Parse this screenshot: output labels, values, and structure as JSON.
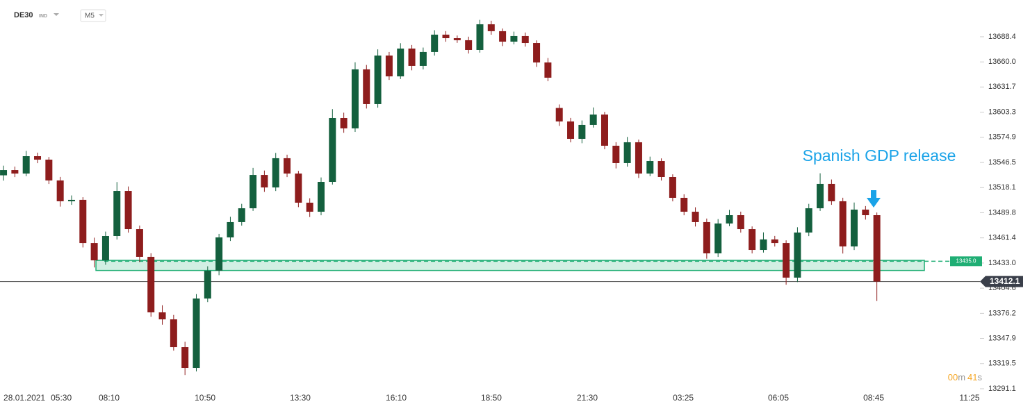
{
  "chart_data": {
    "type": "candlestick",
    "symbol": "DE30",
    "symbol_type": "IND",
    "timeframe": "M5",
    "up_color": "#14603e",
    "down_color": "#8e1d1d",
    "open": [
      13532.0,
      13537.9,
      13534.0,
      13553.6,
      13549.7,
      13526.2,
      13502.7,
      13504.3,
      13455.6,
      13436.0,
      13463.5,
      13514.4,
      13471.3,
      13440.0,
      13377.3,
      13369.4,
      13338.1,
      13314.6,
      13392.9,
      13424.3,
      13461.9,
      13479.2,
      13494.8,
      13532.4,
      13518.3,
      13551.3,
      13534.0,
      13501.1,
      13490.9,
      13524.6,
      13596.7,
      13585.0,
      13651.6,
      13612.4,
      13667.2,
      13643.7,
      13675.1,
      13655.5,
      13671.2,
      13690.8,
      13686.8,
      13684.5,
      13673.5,
      13702.5,
      13694.7,
      13682.9,
      13689.2,
      13681.3,
      13659.4,
      13608.0,
      13592.8,
      13573.2,
      13588.9,
      13600.6,
      13565.4,
      13545.8,
      13569.3,
      13534.0,
      13548.1,
      13530.1,
      13506.6,
      13490.9,
      13479.2,
      13443.9,
      13477.6,
      13487.0,
      13471.3,
      13447.8,
      13459.6,
      13455.6,
      13416.5,
      13467.4,
      13494.8,
      13522.3,
      13502.7,
      13451.7,
      13493.3,
      13487.0
    ],
    "high": [
      13542.9,
      13541.9,
      13559.6,
      13557.6,
      13552.7,
      13530.2,
      13509.3,
      13507.3,
      13461.6,
      13468.5,
      13524.4,
      13519.4,
      13475.3,
      13444.0,
      13385.3,
      13374.4,
      13344.1,
      13397.9,
      13429.3,
      13465.9,
      13485.2,
      13499.8,
      13540.4,
      13537.4,
      13557.3,
      13555.3,
      13537.0,
      13506.1,
      13529.6,
      13606.7,
      13602.7,
      13659.6,
      13656.6,
      13674.2,
      13671.2,
      13681.1,
      13679.1,
      13676.2,
      13695.8,
      13694.8,
      13689.8,
      13688.5,
      13707.5,
      13706.5,
      13697.7,
      13694.2,
      13693.2,
      13684.3,
      13664.4,
      13612.0,
      13596.8,
      13593.9,
      13608.6,
      13603.6,
      13569.4,
      13575.3,
      13572.3,
      13553.1,
      13551.1,
      13533.1,
      13510.6,
      13495.9,
      13483.2,
      13482.6,
      13493.0,
      13491.0,
      13474.3,
      13467.6,
      13463.6,
      13458.6,
      13473.4,
      13499.8,
      13534.3,
      13527.3,
      13506.7,
      13501.3,
      13497.3,
      13490.0
    ],
    "low": [
      13526.0,
      13530.0,
      13531.0,
      13545.7,
      13522.2,
      13496.7,
      13498.7,
      13450.6,
      13428.0,
      13431.0,
      13459.5,
      13467.3,
      13434.0,
      13372.3,
      13363.4,
      13334.1,
      13306.6,
      13310.6,
      13388.9,
      13419.3,
      13457.9,
      13475.2,
      13491.8,
      13513.3,
      13514.3,
      13530.0,
      13496.1,
      13484.9,
      13486.9,
      13521.6,
      13580.0,
      13581.0,
      13607.4,
      13608.4,
      13639.7,
      13640.7,
      13650.5,
      13651.5,
      13667.2,
      13682.8,
      13681.5,
      13669.5,
      13670.5,
      13690.7,
      13677.9,
      13679.9,
      13677.3,
      13654.4,
      13638.2,
      13587.8,
      13569.2,
      13568.2,
      13585.9,
      13561.4,
      13539.8,
      13541.8,
      13529.0,
      13531.0,
      13526.1,
      13502.6,
      13486.9,
      13474.2,
      13437.9,
      13439.9,
      13474.6,
      13467.3,
      13443.8,
      13444.8,
      13451.6,
      13408.5,
      13411.5,
      13463.4,
      13491.8,
      13498.7,
      13443.7,
      13447.7,
      13482.0,
      13390.1
    ],
    "close": [
      13537.9,
      13534.0,
      13553.6,
      13549.7,
      13526.2,
      13502.7,
      13504.3,
      13455.6,
      13436.0,
      13463.5,
      13514.4,
      13471.3,
      13440.0,
      13377.3,
      13369.4,
      13338.1,
      13314.6,
      13392.9,
      13424.3,
      13461.9,
      13479.2,
      13494.8,
      13532.4,
      13518.3,
      13551.3,
      13534.0,
      13501.1,
      13490.9,
      13524.6,
      13596.7,
      13585.0,
      13651.6,
      13612.4,
      13667.2,
      13643.7,
      13675.1,
      13655.5,
      13671.2,
      13690.8,
      13686.8,
      13684.5,
      13673.5,
      13702.5,
      13694.7,
      13682.9,
      13689.2,
      13681.3,
      13659.4,
      13642.2,
      13592.8,
      13573.2,
      13588.9,
      13600.6,
      13565.4,
      13545.8,
      13569.3,
      13534.0,
      13548.1,
      13530.1,
      13506.6,
      13490.9,
      13479.2,
      13443.9,
      13477.6,
      13487.0,
      13471.3,
      13447.8,
      13459.6,
      13455.6,
      13416.5,
      13467.4,
      13494.8,
      13522.3,
      13502.7,
      13451.7,
      13493.3,
      13487.0,
      13412.1
    ],
    "xlim": [
      -0.31,
      86.09
    ],
    "xticks": [
      {
        "value": 1.84,
        "label": "28.01.2021"
      },
      {
        "value": 5.09,
        "label": "05:30"
      },
      {
        "value": 9.31,
        "label": "08:10"
      },
      {
        "value": 17.77,
        "label": "10:50"
      },
      {
        "value": 26.16,
        "label": "13:30"
      },
      {
        "value": 34.62,
        "label": "16:10"
      },
      {
        "value": 43.01,
        "label": "18:50"
      },
      {
        "value": 51.47,
        "label": "21:30"
      },
      {
        "value": 59.93,
        "label": "03:25"
      },
      {
        "value": 68.32,
        "label": "06:05"
      },
      {
        "value": 76.72,
        "label": "08:45"
      },
      {
        "value": 85.17,
        "label": "11:25"
      }
    ],
    "ylim": [
      13287.2,
      13729.9
    ],
    "yticks": [
      13291.1,
      13319.5,
      13347.9,
      13376.2,
      13404.6,
      {
        "value": 13433.0,
        "label": "13433.0"
      },
      13461.4,
      13489.8,
      13518.1,
      13546.5,
      13574.9,
      13603.3,
      13631.7,
      {
        "value": 13660.0,
        "label": "13660.0"
      },
      13688.4
    ],
    "zone": {
      "from": 8.15,
      "to": 81.19,
      "low": 13424.6,
      "high": 13436.0,
      "color": "#1fae74"
    },
    "level": {
      "value": 13435.0,
      "label": "13435.0"
    },
    "last": {
      "value": 13412.1,
      "label": "13412.1"
    },
    "annotation": "Spanish GDP release",
    "countdown": {
      "minutes": "00",
      "minutes_unit": "m",
      "seconds": "41",
      "seconds_unit": "s"
    }
  }
}
